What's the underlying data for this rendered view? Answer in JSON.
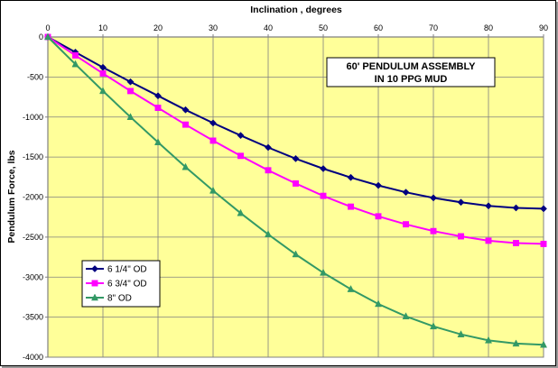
{
  "chart_data": {
    "type": "line",
    "title": "60' PENDULUM ASSEMBLY\nIN 10 PPG MUD",
    "xlabel": "Inclination , degrees",
    "ylabel": "Pendulum Force, lbs",
    "xlim": [
      0,
      90
    ],
    "ylim": [
      -4000,
      0
    ],
    "x_ticks": [
      0,
      10,
      20,
      30,
      40,
      50,
      60,
      70,
      80,
      90
    ],
    "y_ticks": [
      0,
      -500,
      -1000,
      -1500,
      -2000,
      -2500,
      -3000,
      -3500,
      -4000
    ],
    "x_axis_position": "top",
    "grid": true,
    "legend_position": "bottom-left",
    "plot_background": "#ffff99",
    "x": [
      0,
      5,
      10,
      15,
      20,
      25,
      30,
      35,
      40,
      45,
      50,
      55,
      60,
      65,
      70,
      75,
      80,
      85,
      90
    ],
    "series": [
      {
        "name": "6 1/4\" OD",
        "color": "#000080",
        "marker": "diamond",
        "values": [
          0,
          -190,
          -380,
          -560,
          -735,
          -910,
          -1075,
          -1230,
          -1380,
          -1520,
          -1645,
          -1755,
          -1855,
          -1940,
          -2010,
          -2065,
          -2110,
          -2135,
          -2145
        ]
      },
      {
        "name": "6 3/4\" OD",
        "color": "#ff00ff",
        "marker": "square",
        "values": [
          0,
          -230,
          -455,
          -675,
          -885,
          -1095,
          -1295,
          -1485,
          -1665,
          -1830,
          -1985,
          -2120,
          -2240,
          -2340,
          -2425,
          -2490,
          -2545,
          -2575,
          -2585
        ]
      },
      {
        "name": "8\" OD",
        "color": "#339966",
        "marker": "triangle",
        "values": [
          0,
          -340,
          -675,
          -1000,
          -1315,
          -1625,
          -1920,
          -2200,
          -2465,
          -2715,
          -2945,
          -3150,
          -3335,
          -3490,
          -3615,
          -3715,
          -3790,
          -3830,
          -3845
        ]
      }
    ]
  }
}
